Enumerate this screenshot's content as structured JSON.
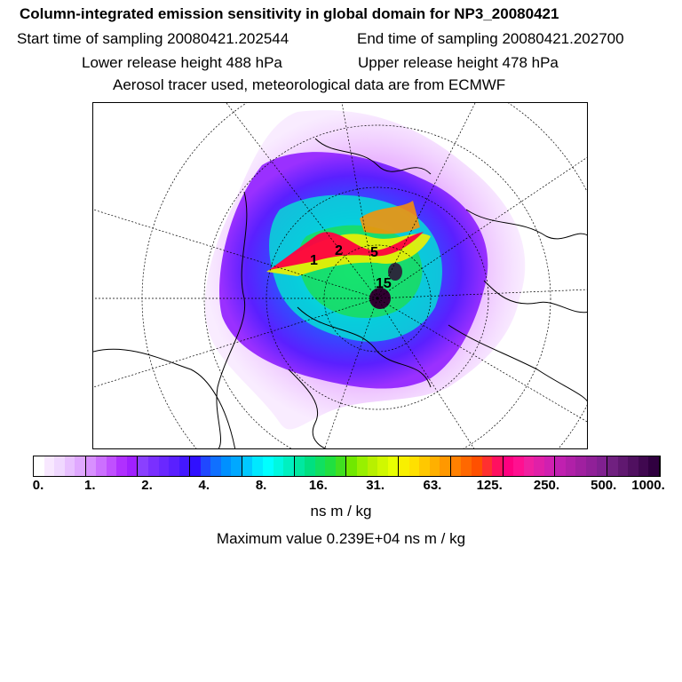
{
  "header": {
    "title": "Column-integrated emission sensitivity in global domain for NP3_20080421",
    "start_time": "Start time of sampling 20080421.202544",
    "end_time": "End time of sampling 20080421.202700",
    "lower_release": "Lower release height  488 hPa",
    "upper_release": "Upper release height  478 hPa",
    "tracer_info": "Aerosol tracer used, meteorological data are from ECMWF"
  },
  "map": {
    "projection_center": "north-pole",
    "path_labels": [
      "1",
      "2",
      "5",
      "15"
    ],
    "colors": {
      "low": "#f0ccff",
      "mid": "#2050ff",
      "cyan": "#00f0ff",
      "green": "#20e040",
      "yellow": "#f0f000",
      "orange": "#ff9000",
      "red": "#ff0040",
      "dark": "#300030"
    }
  },
  "colorbar": {
    "units": "ns m / kg",
    "tick_labels": [
      "0.",
      "1.",
      "2.",
      "4.",
      "8.",
      "16.",
      "31.",
      "63.",
      "125.",
      "250.",
      "500.",
      "1000."
    ],
    "swatches": [
      "#ffffff",
      "#f8e8ff",
      "#f0d8ff",
      "#e8c0ff",
      "#e0a8ff",
      "#d890ff",
      "#cc70ff",
      "#c050ff",
      "#b030ff",
      "#a020ff",
      "#8a40ff",
      "#7a30ff",
      "#6a28ff",
      "#5a20ff",
      "#4418ff",
      "#3010ff",
      "#2048ff",
      "#1070ff",
      "#0090ff",
      "#00a8ff",
      "#00c8ff",
      "#00e8ff",
      "#00ffff",
      "#00f8e0",
      "#00f0c0",
      "#00e8a0",
      "#00e080",
      "#10e060",
      "#20e040",
      "#40e020",
      "#70e800",
      "#98f000",
      "#b8f000",
      "#d0f800",
      "#e8ff00",
      "#f8f000",
      "#ffe000",
      "#ffc800",
      "#ffb000",
      "#ff9800",
      "#ff8000",
      "#ff6800",
      "#ff5000",
      "#ff3030",
      "#ff1060",
      "#ff0080",
      "#ff1090",
      "#f020a0",
      "#e020a8",
      "#d020b0",
      "#c020b0",
      "#b020a8",
      "#a020a0",
      "#902098",
      "#802090",
      "#702080",
      "#601870",
      "#501060",
      "#400850",
      "#300040"
    ]
  },
  "maximum_value": "Maximum value  0.239E+04 ns m / kg"
}
